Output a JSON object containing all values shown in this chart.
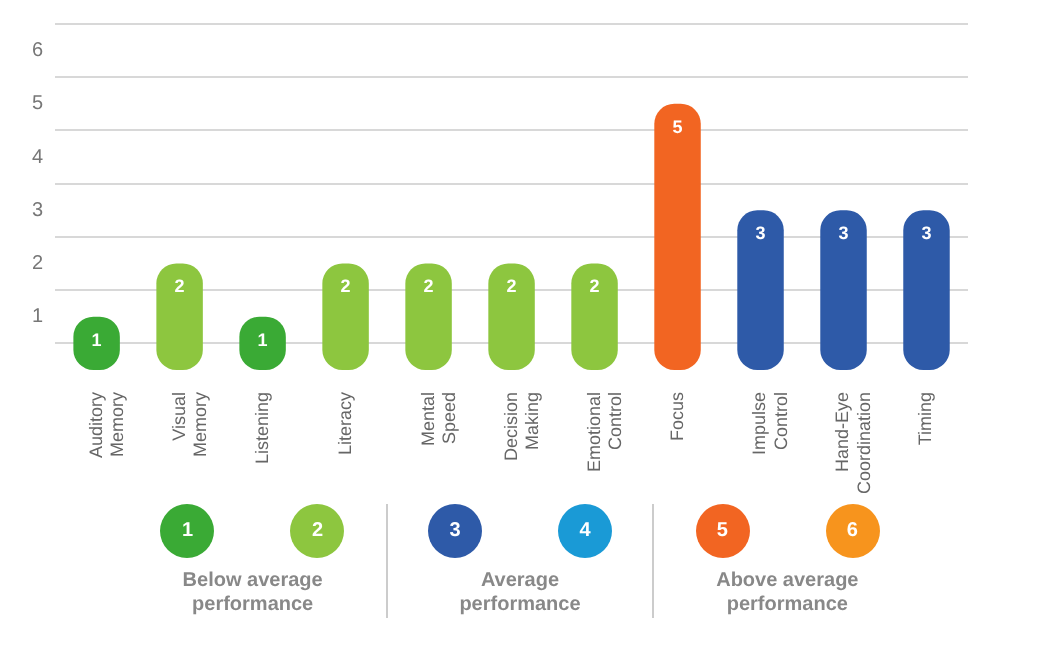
{
  "chart_data": {
    "type": "bar",
    "categories": [
      "Auditory Memory",
      "Visual Memory",
      "Listening",
      "Literacy",
      "Mental Speed",
      "Decision Making",
      "Emotional Control",
      "Focus",
      "Impulse Control",
      "Hand-Eye Coordination",
      "Timing"
    ],
    "values": [
      1,
      2,
      1,
      2,
      2,
      2,
      2,
      5,
      3,
      3,
      3
    ],
    "colors": [
      "#3aaa35",
      "#8dc63f",
      "#3aaa35",
      "#8dc63f",
      "#8dc63f",
      "#8dc63f",
      "#8dc63f",
      "#f26522",
      "#2e5aa8",
      "#2e5aa8",
      "#2e5aa8"
    ],
    "ylim": [
      0,
      6.5
    ],
    "yticks": [
      {
        "value": 0.5,
        "label": null
      },
      1,
      {
        "value": 1.5,
        "label": null
      },
      2,
      {
        "value": 2.5,
        "label": null
      },
      3,
      {
        "value": 3.5,
        "label": null
      },
      4,
      {
        "value": 4.5,
        "label": null
      },
      5,
      {
        "value": 5.5,
        "label": null
      },
      6,
      {
        "value": 6.5,
        "label": null
      }
    ],
    "grid": "y",
    "legend": false,
    "data_labels": true,
    "annotations": [
      "1",
      "2",
      "Below average performance",
      "3",
      "4",
      "Average performance",
      "5",
      "6",
      "Above average performance"
    ]
  }
}
